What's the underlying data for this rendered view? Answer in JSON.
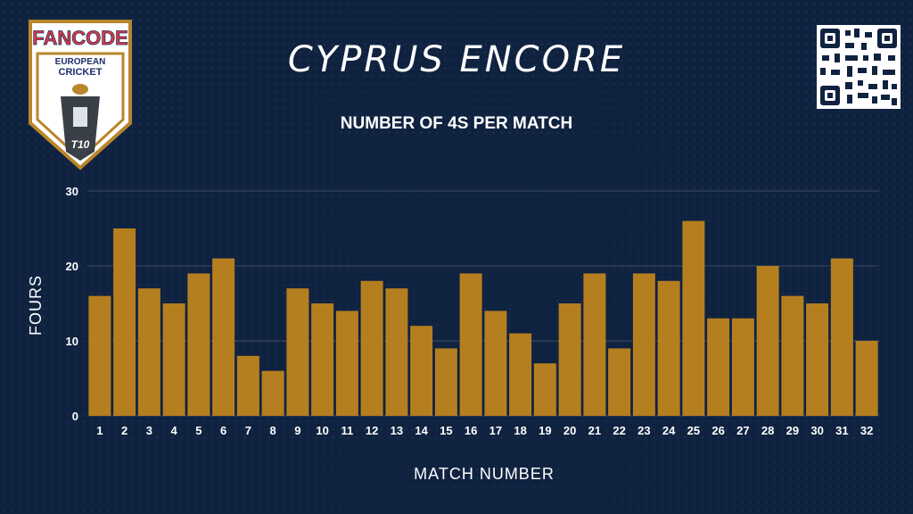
{
  "header": {
    "title": "CYPRUS ENCORE",
    "logo": {
      "brand": "FANCODE",
      "line1": "EUROPEAN",
      "line2": "CRICKET",
      "badge": "T10"
    }
  },
  "colors": {
    "background": "#0f2240",
    "bar": "#b57f1f",
    "logo_gold": "#b8862b"
  },
  "chart_data": {
    "type": "bar",
    "title": "NUMBER OF 4S PER MATCH",
    "xlabel": "MATCH NUMBER",
    "ylabel": "FOURS",
    "ylim": [
      0,
      30
    ],
    "yticks": [
      0,
      10,
      20,
      30
    ],
    "grid": true,
    "categories": [
      "1",
      "2",
      "3",
      "4",
      "5",
      "6",
      "7",
      "8",
      "9",
      "10",
      "11",
      "12",
      "13",
      "14",
      "15",
      "16",
      "17",
      "18",
      "19",
      "20",
      "21",
      "22",
      "23",
      "24",
      "25",
      "26",
      "27",
      "28",
      "29",
      "30",
      "31",
      "32"
    ],
    "values": [
      16,
      25,
      17,
      15,
      19,
      21,
      8,
      6,
      17,
      15,
      14,
      18,
      17,
      12,
      9,
      19,
      14,
      11,
      7,
      15,
      19,
      9,
      19,
      18,
      26,
      13,
      13,
      20,
      16,
      15,
      21,
      10
    ]
  }
}
